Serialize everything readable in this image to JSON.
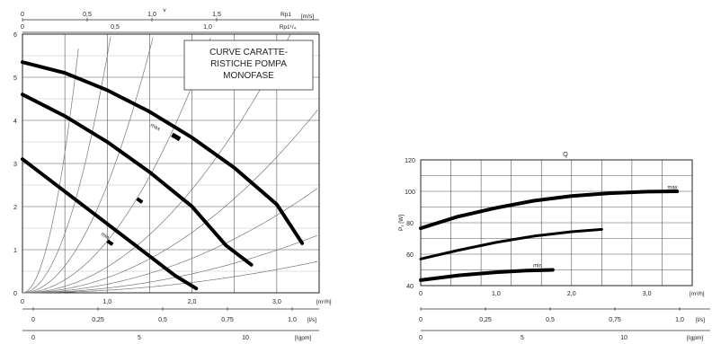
{
  "chart_data": [
    {
      "type": "line",
      "title": "CURVE CARATTE-\nRISTICHE POMPA\nMONOFASE",
      "x": {
        "ticks": [
          "0",
          "1,0",
          "2,0",
          "3,0"
        ],
        "range": [
          0,
          3.5
        ],
        "unit": "[m³/h]"
      },
      "y": {
        "ticks": [
          "0",
          "1",
          "2",
          "3",
          "4",
          "5",
          "6"
        ],
        "range": [
          0,
          6
        ]
      },
      "top_axes": [
        {
          "ticks": [
            "0",
            "0,5",
            "1,0",
            "1,5"
          ],
          "label": "Rp1",
          "unit": "[m/s]",
          "marker": "v"
        },
        {
          "ticks": [
            "0",
            "0,5",
            "1,0"
          ],
          "label": "Rp1¹/₄"
        }
      ],
      "bottom_axes": [
        {
          "ticks": [
            "0",
            "0,25",
            "0,5",
            "0,75",
            "1,0"
          ],
          "unit": "[l/s]"
        },
        {
          "ticks": [
            "0",
            "5",
            "10"
          ],
          "unit": "[Igpm]"
        }
      ],
      "series": [
        {
          "name": "max",
          "points": [
            [
              0,
              5.35
            ],
            [
              0.5,
              5.1
            ],
            [
              1.0,
              4.7
            ],
            [
              1.5,
              4.2
            ],
            [
              2.0,
              3.6
            ],
            [
              2.5,
              2.9
            ],
            [
              3.0,
              2.05
            ],
            [
              3.3,
              1.15
            ]
          ]
        },
        {
          "name": "",
          "points": [
            [
              0,
              4.6
            ],
            [
              0.5,
              4.1
            ],
            [
              1.0,
              3.5
            ],
            [
              1.5,
              2.8
            ],
            [
              2.0,
              2.0
            ],
            [
              2.4,
              1.1
            ],
            [
              2.7,
              0.65
            ]
          ]
        },
        {
          "name": "min",
          "points": [
            [
              0,
              3.1
            ],
            [
              0.5,
              2.35
            ],
            [
              1.0,
              1.6
            ],
            [
              1.5,
              0.85
            ],
            [
              1.8,
              0.4
            ],
            [
              2.05,
              0.1
            ]
          ]
        }
      ],
      "system_curves": [
        0.06,
        0.11,
        0.2,
        0.35,
        0.6,
        1.2,
        2.5,
        5.5,
        13
      ]
    },
    {
      "type": "line",
      "title": "Q",
      "x": {
        "ticks": [
          "0",
          "1,0",
          "2,0",
          "3,0"
        ],
        "range": [
          0,
          3.6
        ],
        "unit": "[m³/h]"
      },
      "y": {
        "ticks": [
          "40",
          "60",
          "80",
          "100",
          "120"
        ],
        "range": [
          40,
          120
        ],
        "label": "P₁ [W]"
      },
      "bottom_axes": [
        {
          "ticks": [
            "0",
            "0,25",
            "0,5",
            "0,75",
            "1,0"
          ],
          "unit": "[l/s]"
        },
        {
          "ticks": [
            "0",
            "5",
            "10"
          ],
          "unit": "[Igpm]"
        }
      ],
      "series": [
        {
          "name": "max",
          "points": [
            [
              0,
              76.5
            ],
            [
              0.5,
              84
            ],
            [
              1.0,
              89.5
            ],
            [
              1.5,
              94
            ],
            [
              2.0,
              97
            ],
            [
              2.5,
              98.8
            ],
            [
              3.0,
              99.8
            ],
            [
              3.4,
              100
            ]
          ]
        },
        {
          "name": "",
          "points": [
            [
              0,
              57
            ],
            [
              0.5,
              62.5
            ],
            [
              1.0,
              67.5
            ],
            [
              1.5,
              71.5
            ],
            [
              2.0,
              74.3
            ],
            [
              2.4,
              75.8
            ]
          ]
        },
        {
          "name": "min",
          "points": [
            [
              0,
              43.5
            ],
            [
              0.5,
              46.5
            ],
            [
              1.0,
              48.5
            ],
            [
              1.4,
              49.6
            ],
            [
              1.75,
              50
            ]
          ]
        }
      ]
    }
  ]
}
